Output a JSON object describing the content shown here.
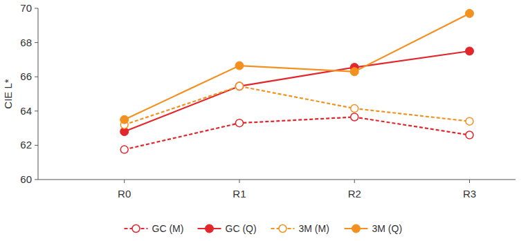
{
  "chart_data": {
    "type": "line",
    "y_label": "CIE L*",
    "categories": [
      "R0",
      "R1",
      "R2",
      "R3"
    ],
    "series": [
      {
        "name": "GC (M)",
        "color": "#e3262b",
        "line_style": "dashed",
        "marker": "open",
        "values": [
          61.75,
          63.3,
          63.65,
          62.6
        ]
      },
      {
        "name": "GC (Q)",
        "color": "#e3262b",
        "line_style": "solid",
        "marker": "filled",
        "values": [
          62.8,
          65.45,
          66.55,
          67.5
        ]
      },
      {
        "name": "3M (M)",
        "color": "#f39120",
        "line_style": "dashed",
        "marker": "open",
        "values": [
          63.2,
          65.45,
          64.15,
          63.4
        ]
      },
      {
        "name": "3M (Q)",
        "color": "#f39120",
        "line_style": "solid",
        "marker": "filled",
        "values": [
          63.5,
          66.65,
          66.3,
          69.7
        ]
      }
    ],
    "ylim": [
      60,
      70
    ],
    "yticks": [
      60,
      62,
      64,
      66,
      68,
      70
    ],
    "grid": false,
    "legend": "bottom"
  }
}
